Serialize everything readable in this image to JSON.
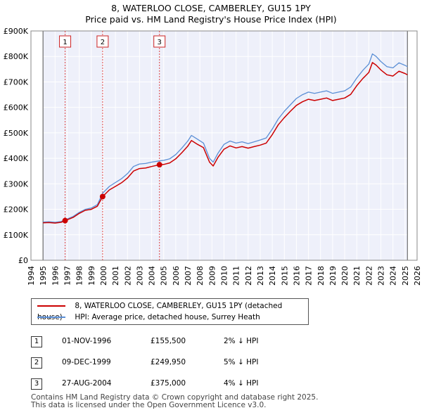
{
  "title_line1": "8, WATERLOO CLOSE, CAMBERLEY, GU15 1PY",
  "title_line2": "Price paid vs. HM Land Registry's House Price Index (HPI)",
  "legend": {
    "property_label": "8, WATERLOO CLOSE, CAMBERLEY, GU15 1PY (detached house)",
    "hpi_label": "HPI: Average price, detached house, Surrey Heath",
    "property_color": "#cc0000",
    "hpi_color": "#5b8fd6"
  },
  "sales": [
    {
      "num": "1",
      "date": "01-NOV-1996",
      "price": "£155,500",
      "hpi": "2% ↓ HPI"
    },
    {
      "num": "2",
      "date": "09-DEC-1999",
      "price": "£249,950",
      "hpi": "5% ↓ HPI"
    },
    {
      "num": "3",
      "date": "27-AUG-2004",
      "price": "£375,000",
      "hpi": "4% ↓ HPI"
    }
  ],
  "footer_line1": "Contains HM Land Registry data © Crown copyright and database right 2025.",
  "footer_line2": "This data is licensed under the Open Government Licence v3.0.",
  "chart_data": {
    "type": "line",
    "title": "8, WATERLOO CLOSE, CAMBERLEY, GU15 1PY",
    "subtitle": "Price paid vs. HM Land Registry's House Price Index (HPI)",
    "xlim": [
      1994,
      2026
    ],
    "ylim": [
      0,
      900000
    ],
    "x_ticks": [
      1994,
      1995,
      1996,
      1997,
      1998,
      1999,
      2000,
      2001,
      2002,
      2003,
      2004,
      2005,
      2006,
      2007,
      2008,
      2009,
      2010,
      2011,
      2012,
      2013,
      2014,
      2015,
      2016,
      2017,
      2018,
      2019,
      2020,
      2021,
      2022,
      2023,
      2024,
      2025,
      2026
    ],
    "y_ticks": [
      0,
      100000,
      200000,
      300000,
      400000,
      500000,
      600000,
      700000,
      800000,
      900000
    ],
    "y_tick_labels": [
      "£0",
      "£100K",
      "£200K",
      "£300K",
      "£400K",
      "£500K",
      "£600K",
      "£700K",
      "£800K",
      "£900K"
    ],
    "data_start": 1995.0,
    "data_end": 2025.2,
    "shade_before": 1995.0,
    "shade_after": 2025.2,
    "series": [
      {
        "name": "HPI: Average price, detached house, Surrey Heath",
        "color": "#5b8fd6",
        "points": [
          [
            1995.0,
            150000
          ],
          [
            1995.5,
            151000
          ],
          [
            1996.0,
            149000
          ],
          [
            1996.5,
            152000
          ],
          [
            1996.83,
            158500
          ],
          [
            1997.5,
            172000
          ],
          [
            1998.0,
            188000
          ],
          [
            1998.5,
            200000
          ],
          [
            1999.0,
            205000
          ],
          [
            1999.5,
            218000
          ],
          [
            1999.94,
            263000
          ],
          [
            2000.5,
            290000
          ],
          [
            2001.0,
            305000
          ],
          [
            2001.5,
            320000
          ],
          [
            2002.0,
            340000
          ],
          [
            2002.5,
            368000
          ],
          [
            2003.0,
            378000
          ],
          [
            2003.5,
            380000
          ],
          [
            2004.0,
            385000
          ],
          [
            2004.65,
            390000
          ],
          [
            2005.0,
            392000
          ],
          [
            2005.5,
            398000
          ],
          [
            2006.0,
            415000
          ],
          [
            2006.5,
            440000
          ],
          [
            2007.0,
            468000
          ],
          [
            2007.3,
            490000
          ],
          [
            2007.8,
            475000
          ],
          [
            2008.3,
            460000
          ],
          [
            2008.8,
            400000
          ],
          [
            2009.1,
            385000
          ],
          [
            2009.5,
            420000
          ],
          [
            2010.0,
            455000
          ],
          [
            2010.5,
            468000
          ],
          [
            2011.0,
            460000
          ],
          [
            2011.5,
            465000
          ],
          [
            2012.0,
            458000
          ],
          [
            2012.5,
            465000
          ],
          [
            2013.0,
            472000
          ],
          [
            2013.5,
            480000
          ],
          [
            2014.0,
            515000
          ],
          [
            2014.5,
            555000
          ],
          [
            2015.0,
            585000
          ],
          [
            2015.5,
            610000
          ],
          [
            2016.0,
            635000
          ],
          [
            2016.5,
            650000
          ],
          [
            2017.0,
            660000
          ],
          [
            2017.5,
            655000
          ],
          [
            2018.0,
            660000
          ],
          [
            2018.5,
            665000
          ],
          [
            2019.0,
            655000
          ],
          [
            2019.5,
            660000
          ],
          [
            2020.0,
            665000
          ],
          [
            2020.5,
            680000
          ],
          [
            2021.0,
            715000
          ],
          [
            2021.5,
            745000
          ],
          [
            2022.0,
            770000
          ],
          [
            2022.3,
            810000
          ],
          [
            2022.6,
            800000
          ],
          [
            2023.0,
            780000
          ],
          [
            2023.5,
            760000
          ],
          [
            2024.0,
            755000
          ],
          [
            2024.5,
            775000
          ],
          [
            2025.0,
            765000
          ],
          [
            2025.2,
            760000
          ]
        ]
      },
      {
        "name": "8, WATERLOO CLOSE, CAMBERLEY, GU15 1PY (detached house)",
        "color": "#cc0000",
        "points": [
          [
            1995.0,
            147000
          ],
          [
            1995.5,
            148000
          ],
          [
            1996.0,
            146000
          ],
          [
            1996.5,
            149000
          ],
          [
            1996.83,
            155500
          ],
          [
            1997.5,
            168000
          ],
          [
            1998.0,
            184000
          ],
          [
            1998.5,
            196000
          ],
          [
            1999.0,
            200000
          ],
          [
            1999.5,
            212000
          ],
          [
            1999.94,
            249950
          ],
          [
            2000.5,
            276000
          ],
          [
            2001.0,
            290000
          ],
          [
            2001.5,
            304000
          ],
          [
            2002.0,
            323000
          ],
          [
            2002.5,
            350000
          ],
          [
            2003.0,
            360000
          ],
          [
            2003.5,
            362000
          ],
          [
            2004.0,
            368000
          ],
          [
            2004.65,
            375000
          ],
          [
            2005.0,
            376000
          ],
          [
            2005.5,
            382000
          ],
          [
            2006.0,
            398000
          ],
          [
            2006.5,
            422000
          ],
          [
            2007.0,
            448000
          ],
          [
            2007.3,
            470000
          ],
          [
            2007.8,
            455000
          ],
          [
            2008.3,
            442000
          ],
          [
            2008.8,
            385000
          ],
          [
            2009.1,
            370000
          ],
          [
            2009.5,
            404000
          ],
          [
            2010.0,
            436000
          ],
          [
            2010.5,
            449000
          ],
          [
            2011.0,
            441000
          ],
          [
            2011.5,
            446000
          ],
          [
            2012.0,
            440000
          ],
          [
            2012.5,
            446000
          ],
          [
            2013.0,
            452000
          ],
          [
            2013.5,
            460000
          ],
          [
            2014.0,
            493000
          ],
          [
            2014.5,
            532000
          ],
          [
            2015.0,
            560000
          ],
          [
            2015.5,
            585000
          ],
          [
            2016.0,
            608000
          ],
          [
            2016.5,
            622000
          ],
          [
            2017.0,
            632000
          ],
          [
            2017.5,
            627000
          ],
          [
            2018.0,
            632000
          ],
          [
            2018.5,
            637000
          ],
          [
            2019.0,
            627000
          ],
          [
            2019.5,
            632000
          ],
          [
            2020.0,
            637000
          ],
          [
            2020.5,
            651000
          ],
          [
            2021.0,
            685000
          ],
          [
            2021.5,
            713000
          ],
          [
            2022.0,
            737000
          ],
          [
            2022.3,
            776000
          ],
          [
            2022.6,
            766000
          ],
          [
            2023.0,
            747000
          ],
          [
            2023.5,
            728000
          ],
          [
            2024.0,
            723000
          ],
          [
            2024.5,
            742000
          ],
          [
            2025.0,
            733000
          ],
          [
            2025.2,
            728000
          ]
        ]
      }
    ],
    "sale_markers": [
      {
        "label": "1",
        "x": 1996.83,
        "y": 155500
      },
      {
        "label": "2",
        "x": 1999.94,
        "y": 249950
      },
      {
        "label": "3",
        "x": 2004.65,
        "y": 375000
      }
    ]
  }
}
